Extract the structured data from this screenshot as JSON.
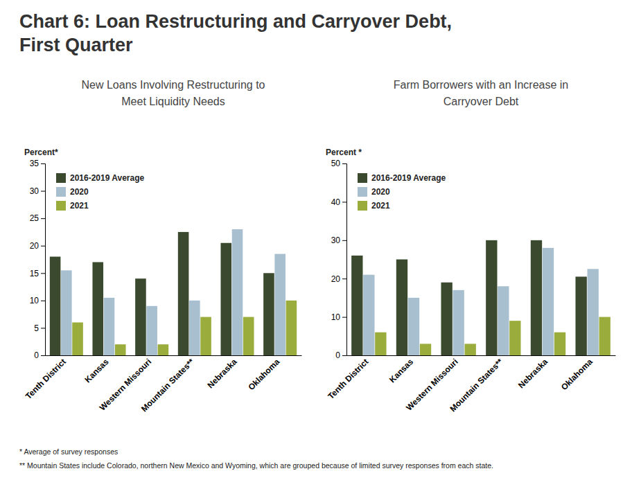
{
  "title": "Chart 6: Loan Restructuring and Carryover Debt,\nFirst Quarter",
  "annotations": [
    "* Average of survey responses",
    "** Mountain States include Colorado, northern New Mexico and Wyoming, which are grouped because of limited survey responses from each state."
  ],
  "chart_data": [
    {
      "type": "bar",
      "subtitle": "New Loans Involving Restructuring to\nMeet Liquidity Needs",
      "ylabel": "Percent*",
      "categories": [
        "Tenth District",
        "Kansas",
        "Western Missouri",
        "Mountain States**",
        "Nebraska",
        "Oklahoma"
      ],
      "series": [
        {
          "name": "2016-2019 Average",
          "color": "#3B4A2F",
          "values": [
            18,
            17,
            14,
            22.5,
            20.5,
            15
          ]
        },
        {
          "name": "2020",
          "color": "#A8BFD0",
          "values": [
            15.5,
            10.5,
            9,
            10,
            23,
            18.5
          ]
        },
        {
          "name": "2021",
          "color": "#9AAD3C",
          "values": [
            6,
            2,
            2,
            7,
            7,
            10
          ]
        }
      ],
      "ylim": [
        0,
        35
      ],
      "yticks": [
        0,
        5,
        10,
        15,
        20,
        25,
        30,
        35
      ],
      "grid": false,
      "legend": "upper left"
    },
    {
      "type": "bar",
      "subtitle": "Farm Borrowers with an Increase in\nCarryover Debt",
      "ylabel": "Percent *",
      "categories": [
        "Tenth District",
        "Kansas",
        "Western Missouri",
        "Mountain States**",
        "Nebraska",
        "Oklahoma"
      ],
      "series": [
        {
          "name": "2016-2019 Average",
          "color": "#3B4A2F",
          "values": [
            26,
            25,
            19,
            30,
            30,
            20.5
          ]
        },
        {
          "name": "2020",
          "color": "#A8BFD0",
          "values": [
            21,
            15,
            17,
            18,
            28,
            22.5
          ]
        },
        {
          "name": "2021",
          "color": "#9AAD3C",
          "values": [
            6,
            3,
            3,
            9,
            6,
            10
          ]
        }
      ],
      "ylim": [
        0,
        50
      ],
      "yticks": [
        0,
        10,
        20,
        30,
        40,
        50
      ],
      "grid": false,
      "legend": "upper left"
    }
  ]
}
